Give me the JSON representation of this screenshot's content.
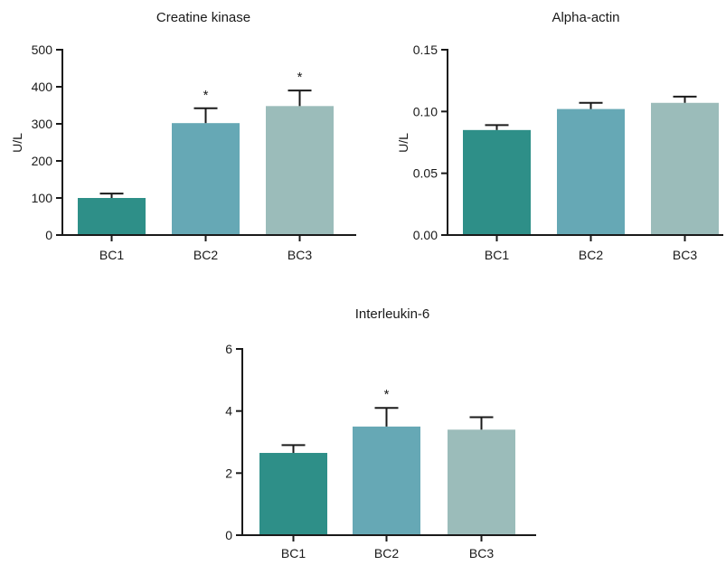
{
  "colors": {
    "BC1": "#2e8f88",
    "BC2": "#66a8b5",
    "BC3": "#9bbcba"
  },
  "chart_data": [
    {
      "type": "bar",
      "title": "Creatine kinase",
      "ylabel": "U/L",
      "xlabel": "",
      "categories": [
        "BC1",
        "BC2",
        "BC3"
      ],
      "values": [
        100,
        302,
        348
      ],
      "errors": [
        12,
        40,
        42
      ],
      "significance": [
        "",
        "*",
        "*"
      ],
      "ylim": [
        0,
        500
      ],
      "yticks": [
        0,
        100,
        200,
        300,
        400,
        500
      ],
      "ytick_labels": [
        "0",
        "100",
        "200",
        "300",
        "400",
        "500"
      ],
      "grid": false
    },
    {
      "type": "bar",
      "title": "Alpha-actin",
      "ylabel": "U/L",
      "xlabel": "",
      "categories": [
        "BC1",
        "BC2",
        "BC3"
      ],
      "values": [
        0.085,
        0.102,
        0.107
      ],
      "errors": [
        0.004,
        0.005,
        0.005
      ],
      "significance": [
        "",
        "",
        ""
      ],
      "ylim": [
        0,
        0.15
      ],
      "yticks": [
        0,
        0.05,
        0.1,
        0.15
      ],
      "ytick_labels": [
        "0.00",
        "0.05",
        "0.10",
        "0.15"
      ],
      "grid": false
    },
    {
      "type": "bar",
      "title": "Interleukin-6",
      "ylabel": "",
      "xlabel": "",
      "categories": [
        "BC1",
        "BC2",
        "BC3"
      ],
      "values": [
        2.65,
        3.5,
        3.4
      ],
      "errors": [
        0.25,
        0.6,
        0.4
      ],
      "significance": [
        "",
        "*",
        ""
      ],
      "ylim": [
        0,
        6
      ],
      "yticks": [
        0,
        2,
        4,
        6
      ],
      "ytick_labels": [
        "0",
        "2",
        "4",
        "6"
      ],
      "grid": false
    }
  ]
}
